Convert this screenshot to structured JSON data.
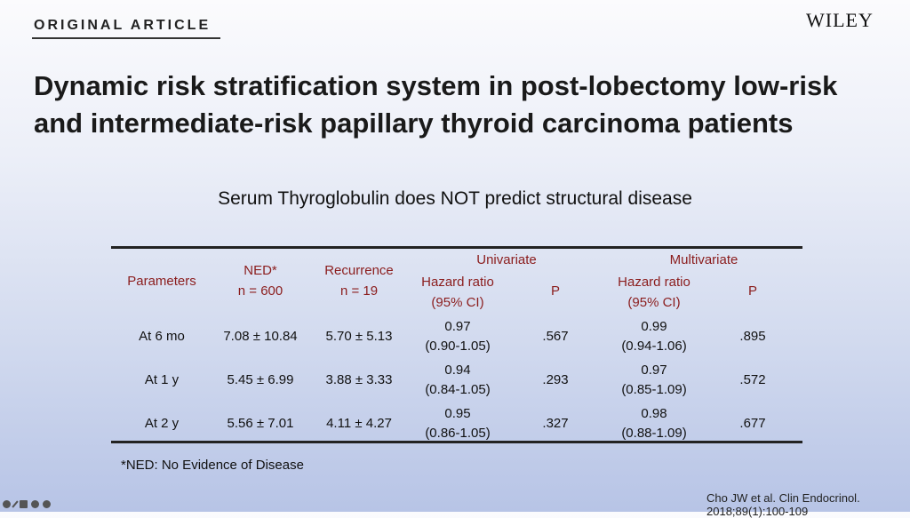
{
  "header": {
    "label": "ORIGINAL ARTICLE",
    "publisher": "WILEY"
  },
  "title": "Dynamic risk stratification system in post-lobectomy low-risk and intermediate-risk papillary thyroid carcinoma patients",
  "subtitle": "Serum Thyroglobulin does NOT predict structural disease",
  "table": {
    "headers": {
      "parameters": "Parameters",
      "ned": "NED*",
      "ned_n": "n = 600",
      "recurrence": "Recurrence",
      "recurrence_n": "n = 19",
      "univariate": "Univariate",
      "multivariate": "Multivariate",
      "hr": "Hazard ratio",
      "ci": "(95% CI)",
      "p": "P"
    },
    "rows": [
      {
        "param": "At 6 mo",
        "ned": "7.08 ± 10.84",
        "rec": "5.70 ± 5.13",
        "uhr": "0.97",
        "uci": "(0.90-1.05)",
        "up": ".567",
        "mhr": "0.99",
        "mci": "(0.94-1.06)",
        "mp": ".895"
      },
      {
        "param": "At 1 y",
        "ned": "5.45 ± 6.99",
        "rec": "3.88 ± 3.33",
        "uhr": "0.94",
        "uci": "(0.84-1.05)",
        "up": ".293",
        "mhr": "0.97",
        "mci": "(0.85-1.09)",
        "mp": ".572"
      },
      {
        "param": "At 2 y",
        "ned": "5.56 ± 7.01",
        "rec": "4.11 ± 4.27",
        "uhr": "0.95",
        "uci": "(0.86-1.05)",
        "up": ".327",
        "mhr": "0.98",
        "mci": "(0.88-1.09)",
        "mp": ".677"
      }
    ]
  },
  "footnote": "*NED: No Evidence of Disease",
  "citation": "Cho JW et al. Clin Endocrinol. 2018;89(1):100-109"
}
